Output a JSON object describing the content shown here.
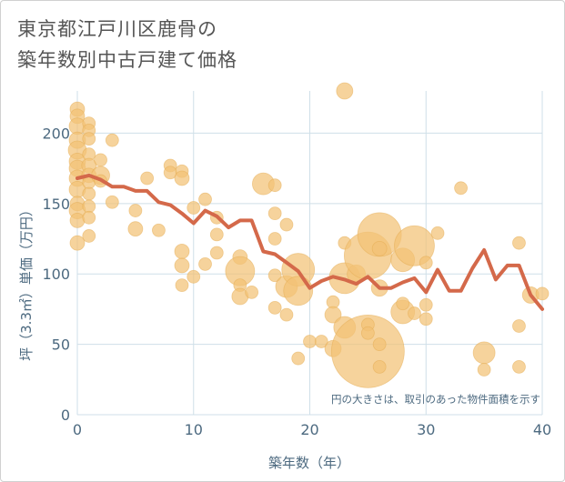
{
  "title_lines": [
    "東京都江戸川区鹿骨の",
    "築年数別中古戸建て価格"
  ],
  "chart_data": {
    "type": "scatter",
    "xlabel": "築年数（年）",
    "ylabel": "坪（3.3㎡）単価（万円）",
    "xlim": [
      0,
      40
    ],
    "ylim": [
      0,
      230
    ],
    "xticks": [
      0,
      10,
      20,
      30,
      40
    ],
    "yticks": [
      0,
      50,
      100,
      150,
      200
    ],
    "grid": true,
    "note": "円の大きさは、取引のあった物件面積を示す",
    "colors": {
      "bubble": "#f3c276",
      "bubble_edge": "#e3a94d",
      "line": "#d4694a",
      "grid": "#cfdfe8",
      "axis_text": "#4d6a80"
    },
    "bubbles": [
      {
        "x": 0,
        "y": 217,
        "s": 8
      },
      {
        "x": 0,
        "y": 212,
        "s": 8
      },
      {
        "x": 0,
        "y": 205,
        "s": 9
      },
      {
        "x": 0,
        "y": 195,
        "s": 9
      },
      {
        "x": 0,
        "y": 188,
        "s": 10
      },
      {
        "x": 0,
        "y": 180,
        "s": 9
      },
      {
        "x": 0,
        "y": 175,
        "s": 9
      },
      {
        "x": 0,
        "y": 168,
        "s": 9
      },
      {
        "x": 0,
        "y": 160,
        "s": 9
      },
      {
        "x": 0,
        "y": 150,
        "s": 8
      },
      {
        "x": 0,
        "y": 145,
        "s": 9
      },
      {
        "x": 0,
        "y": 138,
        "s": 8
      },
      {
        "x": 0,
        "y": 122,
        "s": 8
      },
      {
        "x": 1,
        "y": 207,
        "s": 7
      },
      {
        "x": 1,
        "y": 202,
        "s": 7
      },
      {
        "x": 1,
        "y": 196,
        "s": 7
      },
      {
        "x": 1,
        "y": 185,
        "s": 7
      },
      {
        "x": 1,
        "y": 177,
        "s": 8
      },
      {
        "x": 1,
        "y": 170,
        "s": 8
      },
      {
        "x": 1,
        "y": 165,
        "s": 7
      },
      {
        "x": 1,
        "y": 157,
        "s": 7
      },
      {
        "x": 1,
        "y": 148,
        "s": 7
      },
      {
        "x": 1,
        "y": 140,
        "s": 7
      },
      {
        "x": 1,
        "y": 127,
        "s": 7
      },
      {
        "x": 2,
        "y": 181,
        "s": 7
      },
      {
        "x": 2,
        "y": 170,
        "s": 10
      },
      {
        "x": 2,
        "y": 166,
        "s": 7
      },
      {
        "x": 3,
        "y": 195,
        "s": 7
      },
      {
        "x": 3,
        "y": 151,
        "s": 7
      },
      {
        "x": 5,
        "y": 145,
        "s": 7
      },
      {
        "x": 5,
        "y": 132,
        "s": 8
      },
      {
        "x": 6,
        "y": 168,
        "s": 7
      },
      {
        "x": 7,
        "y": 131,
        "s": 7
      },
      {
        "x": 8,
        "y": 177,
        "s": 7
      },
      {
        "x": 8,
        "y": 172,
        "s": 7
      },
      {
        "x": 9,
        "y": 173,
        "s": 7
      },
      {
        "x": 9,
        "y": 168,
        "s": 8
      },
      {
        "x": 9,
        "y": 116,
        "s": 8
      },
      {
        "x": 9,
        "y": 106,
        "s": 8
      },
      {
        "x": 9,
        "y": 92,
        "s": 7
      },
      {
        "x": 10,
        "y": 147,
        "s": 7
      },
      {
        "x": 10,
        "y": 98,
        "s": 7
      },
      {
        "x": 11,
        "y": 153,
        "s": 7
      },
      {
        "x": 11,
        "y": 107,
        "s": 7
      },
      {
        "x": 12,
        "y": 140,
        "s": 7
      },
      {
        "x": 12,
        "y": 128,
        "s": 7
      },
      {
        "x": 12,
        "y": 115,
        "s": 7
      },
      {
        "x": 14,
        "y": 112,
        "s": 8
      },
      {
        "x": 14,
        "y": 102,
        "s": 16
      },
      {
        "x": 14,
        "y": 92,
        "s": 7
      },
      {
        "x": 14,
        "y": 84,
        "s": 9
      },
      {
        "x": 15,
        "y": 87,
        "s": 7
      },
      {
        "x": 16,
        "y": 164,
        "s": 12
      },
      {
        "x": 17,
        "y": 163,
        "s": 7
      },
      {
        "x": 17,
        "y": 143,
        "s": 7
      },
      {
        "x": 17,
        "y": 125,
        "s": 7
      },
      {
        "x": 17,
        "y": 99,
        "s": 7
      },
      {
        "x": 17,
        "y": 76,
        "s": 7
      },
      {
        "x": 18,
        "y": 135,
        "s": 7
      },
      {
        "x": 18,
        "y": 91,
        "s": 12
      },
      {
        "x": 18,
        "y": 71,
        "s": 7
      },
      {
        "x": 19,
        "y": 103,
        "s": 18
      },
      {
        "x": 19,
        "y": 88,
        "s": 16
      },
      {
        "x": 19,
        "y": 40,
        "s": 7
      },
      {
        "x": 20,
        "y": 52,
        "s": 7
      },
      {
        "x": 21,
        "y": 52,
        "s": 7
      },
      {
        "x": 22,
        "y": 80,
        "s": 7
      },
      {
        "x": 22,
        "y": 71,
        "s": 9
      },
      {
        "x": 22,
        "y": 47,
        "s": 9
      },
      {
        "x": 23,
        "y": 230,
        "s": 9
      },
      {
        "x": 23,
        "y": 122,
        "s": 7
      },
      {
        "x": 23,
        "y": 97,
        "s": 17
      },
      {
        "x": 23,
        "y": 62,
        "s": 12
      },
      {
        "x": 24,
        "y": 100,
        "s": 10
      },
      {
        "x": 25,
        "y": 45,
        "s": 40
      },
      {
        "x": 25,
        "y": 113,
        "s": 26
      },
      {
        "x": 25,
        "y": 64,
        "s": 7
      },
      {
        "x": 25,
        "y": 58,
        "s": 7
      },
      {
        "x": 26,
        "y": 128,
        "s": 24
      },
      {
        "x": 26,
        "y": 118,
        "s": 8
      },
      {
        "x": 26,
        "y": 90,
        "s": 9
      },
      {
        "x": 26,
        "y": 50,
        "s": 7
      },
      {
        "x": 26,
        "y": 34,
        "s": 7
      },
      {
        "x": 28,
        "y": 110,
        "s": 13
      },
      {
        "x": 28,
        "y": 73,
        "s": 13
      },
      {
        "x": 28,
        "y": 79,
        "s": 7
      },
      {
        "x": 29,
        "y": 120,
        "s": 22
      },
      {
        "x": 29,
        "y": 72,
        "s": 7
      },
      {
        "x": 30,
        "y": 108,
        "s": 7
      },
      {
        "x": 30,
        "y": 78,
        "s": 7
      },
      {
        "x": 30,
        "y": 68,
        "s": 7
      },
      {
        "x": 31,
        "y": 129,
        "s": 7
      },
      {
        "x": 33,
        "y": 161,
        "s": 7
      },
      {
        "x": 35,
        "y": 44,
        "s": 12
      },
      {
        "x": 35,
        "y": 32,
        "s": 7
      },
      {
        "x": 38,
        "y": 122,
        "s": 7
      },
      {
        "x": 38,
        "y": 63,
        "s": 7
      },
      {
        "x": 38,
        "y": 34,
        "s": 7
      },
      {
        "x": 39,
        "y": 85,
        "s": 9
      },
      {
        "x": 40,
        "y": 86,
        "s": 7
      }
    ],
    "line": {
      "x": [
        0,
        1,
        2,
        3,
        4,
        5,
        6,
        7,
        8,
        9,
        10,
        11,
        12,
        13,
        14,
        15,
        16,
        17,
        18,
        19,
        20,
        21,
        22,
        23,
        24,
        25,
        26,
        27,
        28,
        29,
        30,
        31,
        32,
        33,
        34,
        35,
        36,
        37,
        38,
        39,
        40
      ],
      "y": [
        168,
        170,
        167,
        162,
        162,
        159,
        159,
        151,
        149,
        143,
        136,
        145,
        141,
        133,
        138,
        138,
        116,
        114,
        108,
        102,
        90,
        95,
        98,
        96,
        93,
        98,
        90,
        90,
        94,
        97,
        87,
        103,
        88,
        88,
        104,
        117,
        96,
        106,
        106,
        85,
        75
      ]
    }
  }
}
